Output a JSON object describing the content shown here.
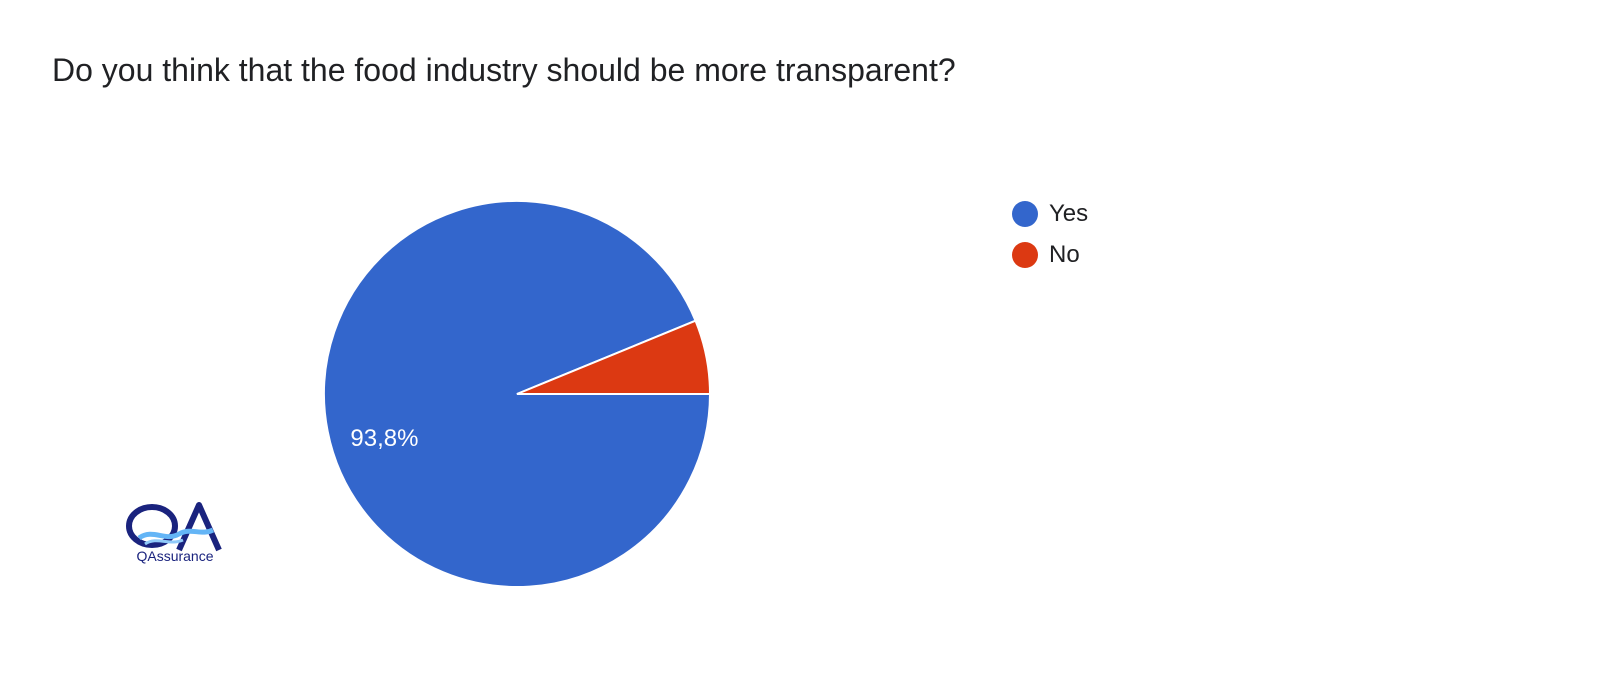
{
  "title": "Do you think that the food industry should be more transparent?",
  "chart_data": {
    "type": "pie",
    "title": "Do you think that the food industry should be more transparent?",
    "categories": [
      "Yes",
      "No"
    ],
    "values": [
      93.8,
      6.2
    ],
    "labels": [
      "93,8%",
      ""
    ],
    "colors": [
      "#3366cc",
      "#dc3912"
    ],
    "legend_position": "right"
  },
  "legend": {
    "items": [
      {
        "label": "Yes",
        "color": "#3366cc"
      },
      {
        "label": "No",
        "color": "#dc3912"
      }
    ]
  },
  "logo": {
    "text": "QAssurance",
    "mark": "QA"
  }
}
